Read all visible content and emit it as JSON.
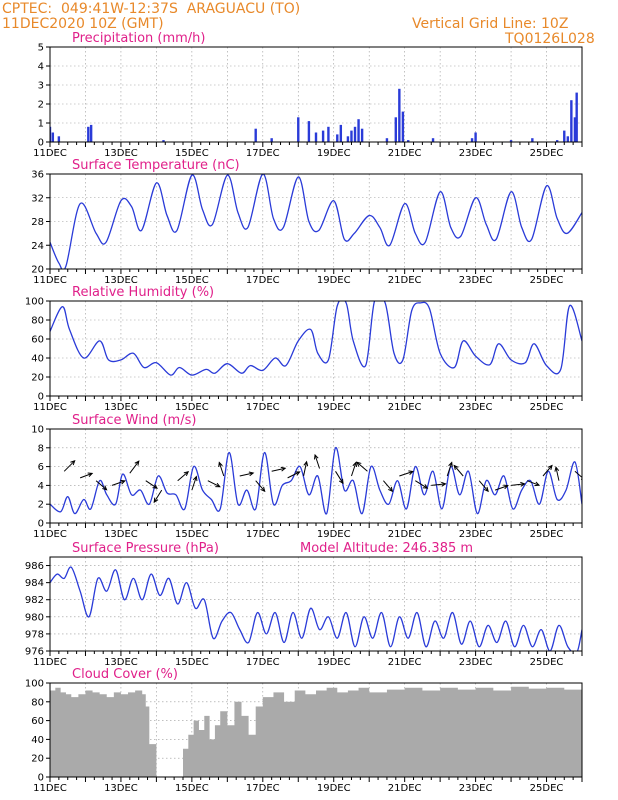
{
  "header": {
    "source": "CPTEC:",
    "location": "049:41W-12:37S  ARAGUACU (TO)",
    "datetime": "11DEC2020 10Z (GMT)",
    "grid_line": "Vertical Grid Line: 10Z",
    "code": "TQ0126L028"
  },
  "colors": {
    "header": "#e8892a",
    "title": "#e0208a",
    "series": "#2a3bd8",
    "cloud": "#aaaaaa",
    "grid": "#9a9a9a"
  },
  "chart_data": [
    {
      "id": "precip",
      "type": "bar",
      "title": "Precipitation (mm/h)",
      "ylim": [
        0,
        5
      ],
      "yticks": [
        0,
        1,
        2,
        3,
        4,
        5
      ],
      "xticks": [
        "11DEC",
        "13DEC",
        "15DEC",
        "17DEC",
        "19DEC",
        "21DEC",
        "23DEC",
        "25DEC"
      ],
      "x_range": [
        11,
        26
      ],
      "grid": "dotted",
      "x": [
        11.0,
        11.08,
        11.25,
        12.08,
        12.16,
        14.2,
        16.8,
        17.25,
        18.0,
        18.3,
        18.5,
        18.7,
        18.85,
        19.1,
        19.2,
        19.4,
        19.5,
        19.6,
        19.7,
        19.8,
        20.5,
        20.75,
        20.85,
        20.95,
        21.1,
        21.8,
        22.9,
        23.0,
        24.0,
        24.6,
        25.3,
        25.5,
        25.6,
        25.7,
        25.8,
        25.85
      ],
      "values": [
        0.8,
        0.5,
        0.3,
        0.8,
        0.9,
        0.1,
        0.7,
        0.2,
        1.3,
        1.1,
        0.5,
        0.6,
        0.8,
        0.4,
        0.9,
        0.3,
        0.6,
        0.8,
        1.2,
        0.7,
        0.2,
        1.3,
        2.8,
        1.6,
        0.1,
        0.2,
        0.2,
        0.5,
        0.1,
        0.2,
        0.1,
        0.6,
        0.3,
        2.2,
        1.3,
        2.6
      ]
    },
    {
      "id": "temp",
      "type": "line",
      "title": "Surface Temperature (nC)",
      "ylim": [
        20,
        36
      ],
      "yticks": [
        20,
        24,
        28,
        32,
        36
      ],
      "xticks": [
        "11DEC",
        "13DEC",
        "15DEC",
        "17DEC",
        "19DEC",
        "21DEC",
        "23DEC",
        "25DEC"
      ],
      "x_range": [
        11,
        26
      ],
      "grid": "dotted",
      "x": [
        11.0,
        11.25,
        11.45,
        11.85,
        12.3,
        12.58,
        13.0,
        13.3,
        13.58,
        14.0,
        14.3,
        14.58,
        15.0,
        15.3,
        15.58,
        16.0,
        16.3,
        16.58,
        17.0,
        17.3,
        17.58,
        18.0,
        18.3,
        18.58,
        19.0,
        19.3,
        19.58,
        20.0,
        20.3,
        20.58,
        21.0,
        21.3,
        21.58,
        22.0,
        22.3,
        22.58,
        23.0,
        23.3,
        23.58,
        24.0,
        24.3,
        24.58,
        25.0,
        25.3,
        25.58,
        26.0
      ],
      "values": [
        24.5,
        21.0,
        20.5,
        31.0,
        26.0,
        24.5,
        31.5,
        30.5,
        26.5,
        34.5,
        29.0,
        26.5,
        35.8,
        30.0,
        27.5,
        35.8,
        29.5,
        27.0,
        36.0,
        28.5,
        27.0,
        35.5,
        28.0,
        26.5,
        31.5,
        25.0,
        26.0,
        29.0,
        27.0,
        24.0,
        31.0,
        26.0,
        24.5,
        33.0,
        27.0,
        25.5,
        32.0,
        27.5,
        25.0,
        33.0,
        27.0,
        25.0,
        34.0,
        28.5,
        26.0,
        29.5
      ]
    },
    {
      "id": "rh",
      "type": "line",
      "title": "Relative Humidity (%)",
      "ylim": [
        0,
        100
      ],
      "yticks": [
        0,
        20,
        40,
        60,
        80,
        100
      ],
      "xticks": [
        "11DEC",
        "13DEC",
        "15DEC",
        "17DEC",
        "19DEC",
        "21DEC",
        "23DEC",
        "25DEC"
      ],
      "x_range": [
        11,
        26
      ],
      "grid": "dotted",
      "x": [
        11.0,
        11.35,
        11.55,
        11.95,
        12.4,
        12.65,
        13.0,
        13.35,
        13.65,
        14.0,
        14.4,
        14.65,
        15.0,
        15.4,
        15.65,
        16.0,
        16.4,
        16.65,
        17.0,
        17.35,
        17.65,
        18.0,
        18.35,
        18.55,
        18.85,
        19.1,
        19.35,
        19.55,
        19.9,
        20.15,
        20.45,
        20.7,
        20.95,
        21.2,
        21.45,
        21.7,
        22.0,
        22.4,
        22.65,
        23.0,
        23.4,
        23.65,
        24.0,
        24.4,
        24.65,
        25.0,
        25.4,
        25.65,
        26.0
      ],
      "values": [
        68,
        94,
        70,
        40,
        58,
        38,
        38,
        45,
        30,
        35,
        22,
        30,
        22,
        28,
        24,
        34,
        24,
        32,
        27,
        40,
        32,
        58,
        70,
        45,
        38,
        95,
        98,
        58,
        32,
        100,
        98,
        45,
        38,
        90,
        98,
        92,
        45,
        30,
        58,
        42,
        33,
        55,
        38,
        35,
        55,
        32,
        28,
        95,
        58
      ]
    },
    {
      "id": "wind",
      "type": "line",
      "title": "Surface Wind (m/s)",
      "ylim": [
        0,
        10
      ],
      "yticks": [
        0,
        2,
        4,
        6,
        8,
        10
      ],
      "xticks": [
        "11DEC",
        "13DEC",
        "15DEC",
        "17DEC",
        "19DEC",
        "21DEC",
        "23DEC",
        "25DEC"
      ],
      "x_range": [
        11,
        26
      ],
      "grid": "dotted",
      "x": [
        11.0,
        11.3,
        11.5,
        11.7,
        11.95,
        12.15,
        12.4,
        12.6,
        12.85,
        13.05,
        13.3,
        13.55,
        13.8,
        14.05,
        14.3,
        14.55,
        14.8,
        15.05,
        15.3,
        15.55,
        15.8,
        16.05,
        16.3,
        16.55,
        16.8,
        17.05,
        17.3,
        17.55,
        17.8,
        18.05,
        18.3,
        18.55,
        18.8,
        19.05,
        19.3,
        19.55,
        19.8,
        20.05,
        20.3,
        20.55,
        20.8,
        21.05,
        21.3,
        21.55,
        21.8,
        22.05,
        22.3,
        22.55,
        22.8,
        23.05,
        23.3,
        23.55,
        23.8,
        24.05,
        24.3,
        24.55,
        24.8,
        25.05,
        25.3,
        25.55,
        25.8,
        26.0
      ],
      "values": [
        2.0,
        1.2,
        2.8,
        1.0,
        2.5,
        1.5,
        4.5,
        3.0,
        2.0,
        5.2,
        3.0,
        3.5,
        2.0,
        5.0,
        3.2,
        3.0,
        1.5,
        6.0,
        3.5,
        2.5,
        1.5,
        7.5,
        2.0,
        3.5,
        1.5,
        7.5,
        2.0,
        4.0,
        4.5,
        6.0,
        3.0,
        5.0,
        1.0,
        8.0,
        3.5,
        4.5,
        1.0,
        6.0,
        3.5,
        2.0,
        4.5,
        1.5,
        6.0,
        3.0,
        5.5,
        1.5,
        6.0,
        3.0,
        5.5,
        1.0,
        4.5,
        3.0,
        5.0,
        1.5,
        3.5,
        4.5,
        2.0,
        5.5,
        2.5,
        3.5,
        6.5,
        2.0
      ],
      "arrows": [
        {
          "x": 11.4,
          "y": 5.5,
          "dx": 0.7,
          "dy": 0.7
        },
        {
          "x": 11.85,
          "y": 4.8,
          "dx": 0.8,
          "dy": 0.3
        },
        {
          "x": 12.3,
          "y": 4.5,
          "dx": 0.7,
          "dy": -0.6
        },
        {
          "x": 12.75,
          "y": 4.0,
          "dx": 0.85,
          "dy": 0.3
        },
        {
          "x": 13.25,
          "y": 5.3,
          "dx": 0.6,
          "dy": 0.8
        },
        {
          "x": 13.7,
          "y": 4.5,
          "dx": 0.75,
          "dy": -0.5
        },
        {
          "x": 14.15,
          "y": 3.5,
          "dx": -0.5,
          "dy": -0.8
        },
        {
          "x": 14.6,
          "y": 4.5,
          "dx": 0.7,
          "dy": 0.6
        },
        {
          "x": 15.0,
          "y": 3.5,
          "dx": 0.3,
          "dy": 0.9
        },
        {
          "x": 15.45,
          "y": 4.5,
          "dx": 0.8,
          "dy": -0.4
        },
        {
          "x": 15.9,
          "y": 5.0,
          "dx": -0.3,
          "dy": 0.9
        },
        {
          "x": 16.35,
          "y": 5.0,
          "dx": 0.9,
          "dy": 0.2
        },
        {
          "x": 16.8,
          "y": 4.5,
          "dx": 0.6,
          "dy": -0.7
        },
        {
          "x": 17.25,
          "y": 5.5,
          "dx": 0.9,
          "dy": 0.2
        },
        {
          "x": 17.7,
          "y": 4.8,
          "dx": 0.8,
          "dy": 0.4
        },
        {
          "x": 18.15,
          "y": 5.0,
          "dx": 0.2,
          "dy": 0.95
        },
        {
          "x": 18.6,
          "y": 5.8,
          "dx": -0.3,
          "dy": 0.9
        },
        {
          "x": 19.05,
          "y": 5.5,
          "dx": 0.5,
          "dy": -0.8
        },
        {
          "x": 19.5,
          "y": 5.0,
          "dx": 0.3,
          "dy": 0.9
        },
        {
          "x": 19.95,
          "y": 5.5,
          "dx": -0.7,
          "dy": 0.6
        },
        {
          "x": 20.4,
          "y": 4.5,
          "dx": 0.6,
          "dy": -0.7
        },
        {
          "x": 20.85,
          "y": 5.0,
          "dx": 0.9,
          "dy": 0.3
        },
        {
          "x": 21.3,
          "y": 4.5,
          "dx": 0.8,
          "dy": -0.5
        },
        {
          "x": 21.75,
          "y": 4.0,
          "dx": 0.95,
          "dy": 0.1
        },
        {
          "x": 22.2,
          "y": 5.0,
          "dx": 0.3,
          "dy": 0.9
        },
        {
          "x": 22.65,
          "y": 5.0,
          "dx": -0.6,
          "dy": 0.7
        },
        {
          "x": 23.1,
          "y": 4.5,
          "dx": 0.6,
          "dy": -0.7
        },
        {
          "x": 23.55,
          "y": 3.5,
          "dx": 0.85,
          "dy": 0.3
        },
        {
          "x": 24.0,
          "y": 4.0,
          "dx": 0.9,
          "dy": 0.1
        },
        {
          "x": 24.45,
          "y": 4.5,
          "dx": 0.8,
          "dy": -0.3
        },
        {
          "x": 24.9,
          "y": 5.0,
          "dx": 0.6,
          "dy": 0.7
        },
        {
          "x": 25.35,
          "y": 4.5,
          "dx": -0.2,
          "dy": 0.9
        },
        {
          "x": 25.8,
          "y": 5.5,
          "dx": 0.7,
          "dy": -0.6
        }
      ]
    },
    {
      "id": "pressure",
      "type": "line",
      "title": "Surface Pressure (hPa)",
      "annotation": "Model Altitude: 246.385 m",
      "ylim": [
        976,
        987
      ],
      "yticks": [
        976,
        978,
        980,
        982,
        984,
        986
      ],
      "xticks": [
        "11DEC",
        "13DEC",
        "15DEC",
        "17DEC",
        "19DEC",
        "21DEC",
        "23DEC",
        "25DEC"
      ],
      "x_range": [
        11,
        26
      ],
      "grid": "dotted",
      "x": [
        11.0,
        11.2,
        11.4,
        11.6,
        11.85,
        12.1,
        12.35,
        12.6,
        12.85,
        13.1,
        13.35,
        13.6,
        13.85,
        14.1,
        14.35,
        14.6,
        14.85,
        15.1,
        15.35,
        15.6,
        15.85,
        16.1,
        16.35,
        16.6,
        16.85,
        17.1,
        17.35,
        17.6,
        17.85,
        18.1,
        18.35,
        18.6,
        18.85,
        19.1,
        19.35,
        19.6,
        19.85,
        20.1,
        20.35,
        20.6,
        20.85,
        21.1,
        21.35,
        21.6,
        21.85,
        22.1,
        22.35,
        22.6,
        22.85,
        23.1,
        23.35,
        23.6,
        23.85,
        24.1,
        24.35,
        24.6,
        24.85,
        25.1,
        25.35,
        25.6,
        25.85,
        26.0
      ],
      "values": [
        984.0,
        985.0,
        984.5,
        985.8,
        983.0,
        980.0,
        984.5,
        983.0,
        985.5,
        982.0,
        984.5,
        982.0,
        985.0,
        982.5,
        984.5,
        981.5,
        984.0,
        981.0,
        982.0,
        977.5,
        979.5,
        980.5,
        978.5,
        977.0,
        980.5,
        978.0,
        980.5,
        977.0,
        980.5,
        977.5,
        981.0,
        978.5,
        980.0,
        977.5,
        980.5,
        976.5,
        980.0,
        977.5,
        980.5,
        976.5,
        980.0,
        977.5,
        980.5,
        976.5,
        979.5,
        977.5,
        980.5,
        976.8,
        979.5,
        976.5,
        979.0,
        977.0,
        979.5,
        976.5,
        979.0,
        976.5,
        978.5,
        976.0,
        979.0,
        976.5,
        975.8,
        978.5
      ]
    },
    {
      "id": "cloud",
      "type": "area",
      "title": "Cloud Cover (%)",
      "ylim": [
        0,
        100
      ],
      "yticks": [
        0,
        20,
        40,
        60,
        80,
        100
      ],
      "xticks": [
        "11DEC",
        "13DEC",
        "15DEC",
        "17DEC",
        "19DEC",
        "21DEC",
        "23DEC",
        "25DEC"
      ],
      "x_range": [
        11,
        26
      ],
      "grid": "dotted",
      "x": [
        11.0,
        11.15,
        11.3,
        11.45,
        11.6,
        11.8,
        12.0,
        12.2,
        12.4,
        12.6,
        12.8,
        13.0,
        13.2,
        13.4,
        13.6,
        13.7,
        13.8,
        14.0,
        14.2,
        14.4,
        14.6,
        14.75,
        14.9,
        15.05,
        15.2,
        15.35,
        15.5,
        15.65,
        15.8,
        16.0,
        16.2,
        16.4,
        16.6,
        16.8,
        17.0,
        17.3,
        17.6,
        17.9,
        18.2,
        18.5,
        18.8,
        19.1,
        19.4,
        19.7,
        20.0,
        20.5,
        21.0,
        21.5,
        22.0,
        22.5,
        23.0,
        23.5,
        24.0,
        24.5,
        25.0,
        25.5,
        26.0
      ],
      "values": [
        92,
        95,
        90,
        88,
        85,
        88,
        92,
        90,
        88,
        85,
        90,
        88,
        90,
        92,
        88,
        75,
        35,
        0,
        0,
        0,
        0,
        30,
        45,
        60,
        50,
        65,
        40,
        55,
        70,
        55,
        80,
        65,
        45,
        75,
        85,
        90,
        80,
        92,
        88,
        92,
        95,
        90,
        92,
        95,
        90,
        93,
        95,
        92,
        95,
        93,
        95,
        92,
        96,
        94,
        95,
        93,
        96
      ]
    }
  ]
}
